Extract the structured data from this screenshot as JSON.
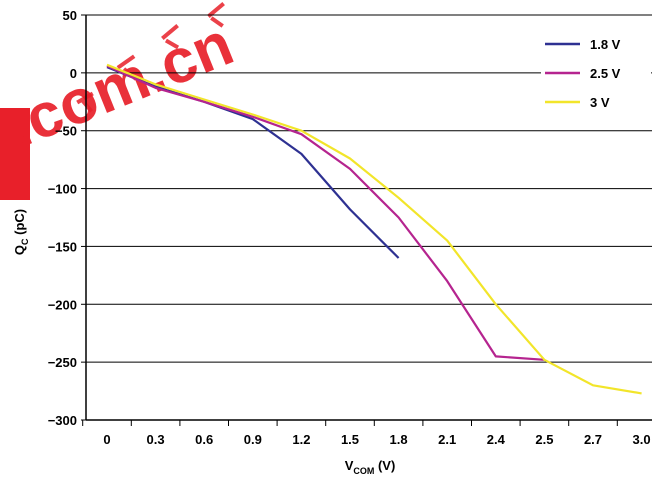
{
  "chart_data": {
    "type": "line",
    "title": "",
    "xlabel": {
      "main": "V",
      "sub": "COM",
      "unit": " (V)"
    },
    "ylabel": {
      "main": "Q",
      "sub": "C",
      "unit": " (pC)"
    },
    "x_tick_labels": [
      "0",
      "0.3",
      "0.6",
      "0.9",
      "1.2",
      "1.5",
      "1.8",
      "2.1",
      "2.4",
      "2.5",
      "2.7",
      "3.0"
    ],
    "y_ticks": [
      50,
      0,
      -50,
      -100,
      -150,
      -200,
      -250,
      -300
    ],
    "y_tick_labels": [
      "50",
      "0",
      "−50",
      "−100",
      "−150",
      "−200",
      "−250",
      "−300"
    ],
    "ylim": [
      -300,
      50
    ],
    "grid": "horizontal",
    "legend_position": "top-right",
    "series": [
      {
        "name": "1.8 V",
        "color": "#2e3192",
        "points": [
          [
            0,
            5
          ],
          [
            1,
            -12
          ],
          [
            2,
            -25
          ],
          [
            3,
            -40
          ],
          [
            4,
            -70
          ],
          [
            5,
            -118
          ],
          [
            6,
            -160
          ]
        ]
      },
      {
        "name": "2.5 V",
        "color": "#b5248f",
        "points": [
          [
            0,
            6
          ],
          [
            1,
            -13
          ],
          [
            2,
            -25
          ],
          [
            3,
            -38
          ],
          [
            4,
            -53
          ],
          [
            5,
            -83
          ],
          [
            6,
            -125
          ],
          [
            7,
            -180
          ],
          [
            8,
            -245
          ],
          [
            9,
            -248
          ]
        ]
      },
      {
        "name": "3 V",
        "color": "#f2e52a",
        "points": [
          [
            0,
            7
          ],
          [
            1,
            -10
          ],
          [
            2,
            -23
          ],
          [
            3,
            -36
          ],
          [
            4,
            -50
          ],
          [
            5,
            -74
          ],
          [
            6,
            -108
          ],
          [
            7,
            -145
          ],
          [
            8,
            -200
          ],
          [
            9,
            -248
          ],
          [
            10,
            -270
          ],
          [
            11,
            -277
          ]
        ]
      }
    ]
  },
  "watermark": {
    "text": ".com.cn",
    "color": "#e8202a"
  }
}
